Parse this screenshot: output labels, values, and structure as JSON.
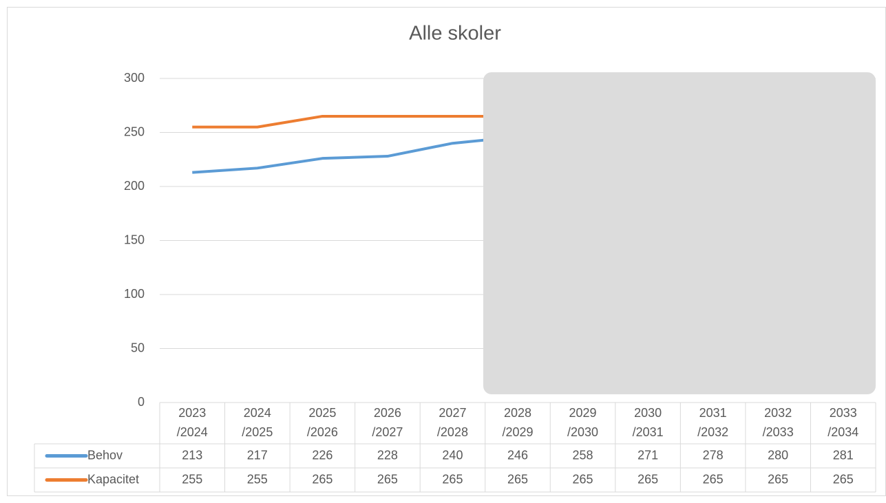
{
  "chart_data": {
    "type": "line",
    "title": "Alle skoler",
    "categories": [
      "2023/2024",
      "2024/2025",
      "2025/2026",
      "2026/2027",
      "2027/2028",
      "2028/2029",
      "2029/2030",
      "2030/2031",
      "2031/2032",
      "2032/2033",
      "2033/2034"
    ],
    "series": [
      {
        "name": "Behov",
        "color": "#5b9bd5",
        "values": [
          213,
          217,
          226,
          228,
          240,
          246,
          258,
          271,
          278,
          280,
          281
        ]
      },
      {
        "name": "Kapacitet",
        "color": "#ed7d31",
        "values": [
          255,
          255,
          265,
          265,
          265,
          265,
          265,
          265,
          265,
          265,
          265
        ]
      }
    ],
    "ylim": [
      0,
      300
    ],
    "yticks": [
      0,
      50,
      100,
      150,
      200,
      250,
      300
    ],
    "grid": true,
    "data_table": true
  }
}
